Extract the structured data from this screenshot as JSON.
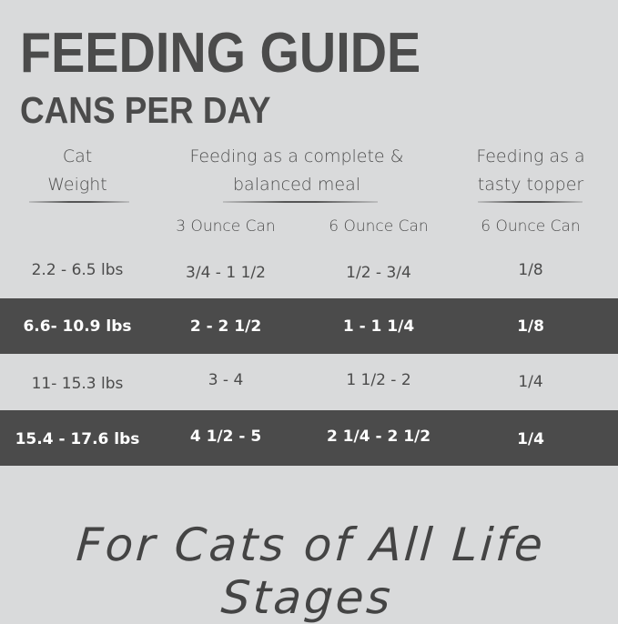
{
  "title": "FEEDING GUIDE",
  "subtitle": "CANS PER DAY",
  "headers": {
    "weight": [
      "Cat",
      "Weight"
    ],
    "complete": [
      "Feeding as a complete &",
      "balanced meal"
    ],
    "topper": [
      "Feeding as a",
      "tasty topper"
    ]
  },
  "subheaders": [
    "3 Ounce Can",
    "6 Ounce Can",
    "6 Ounce Can"
  ],
  "rows": [
    {
      "weight": "2.2 - 6.5 lbs",
      "c3": "3/4 - 1 1/2",
      "c6": "1/2 - 3/4",
      "topper": "1/8",
      "highlight": false
    },
    {
      "weight": "6.6- 10.9 lbs",
      "c3": "2 - 2 1/2",
      "c6": "1 - 1 1/4",
      "topper": "1/8",
      "highlight": true
    },
    {
      "weight": "11- 15.3 lbs",
      "c3": "3 - 4",
      "c6": "1 1/2 - 2",
      "topper": "1/4",
      "highlight": false
    },
    {
      "weight": "15.4 - 17.6 lbs",
      "c3": "4 1/2 - 5",
      "c6": "2 1/4 - 2 1/2",
      "topper": "1/4",
      "highlight": true
    }
  ],
  "footer": "For Cats of All Life Stages",
  "colors": {
    "background": "#d9dadb",
    "band": "#4b4b4b",
    "text": "#4b4b4b"
  }
}
